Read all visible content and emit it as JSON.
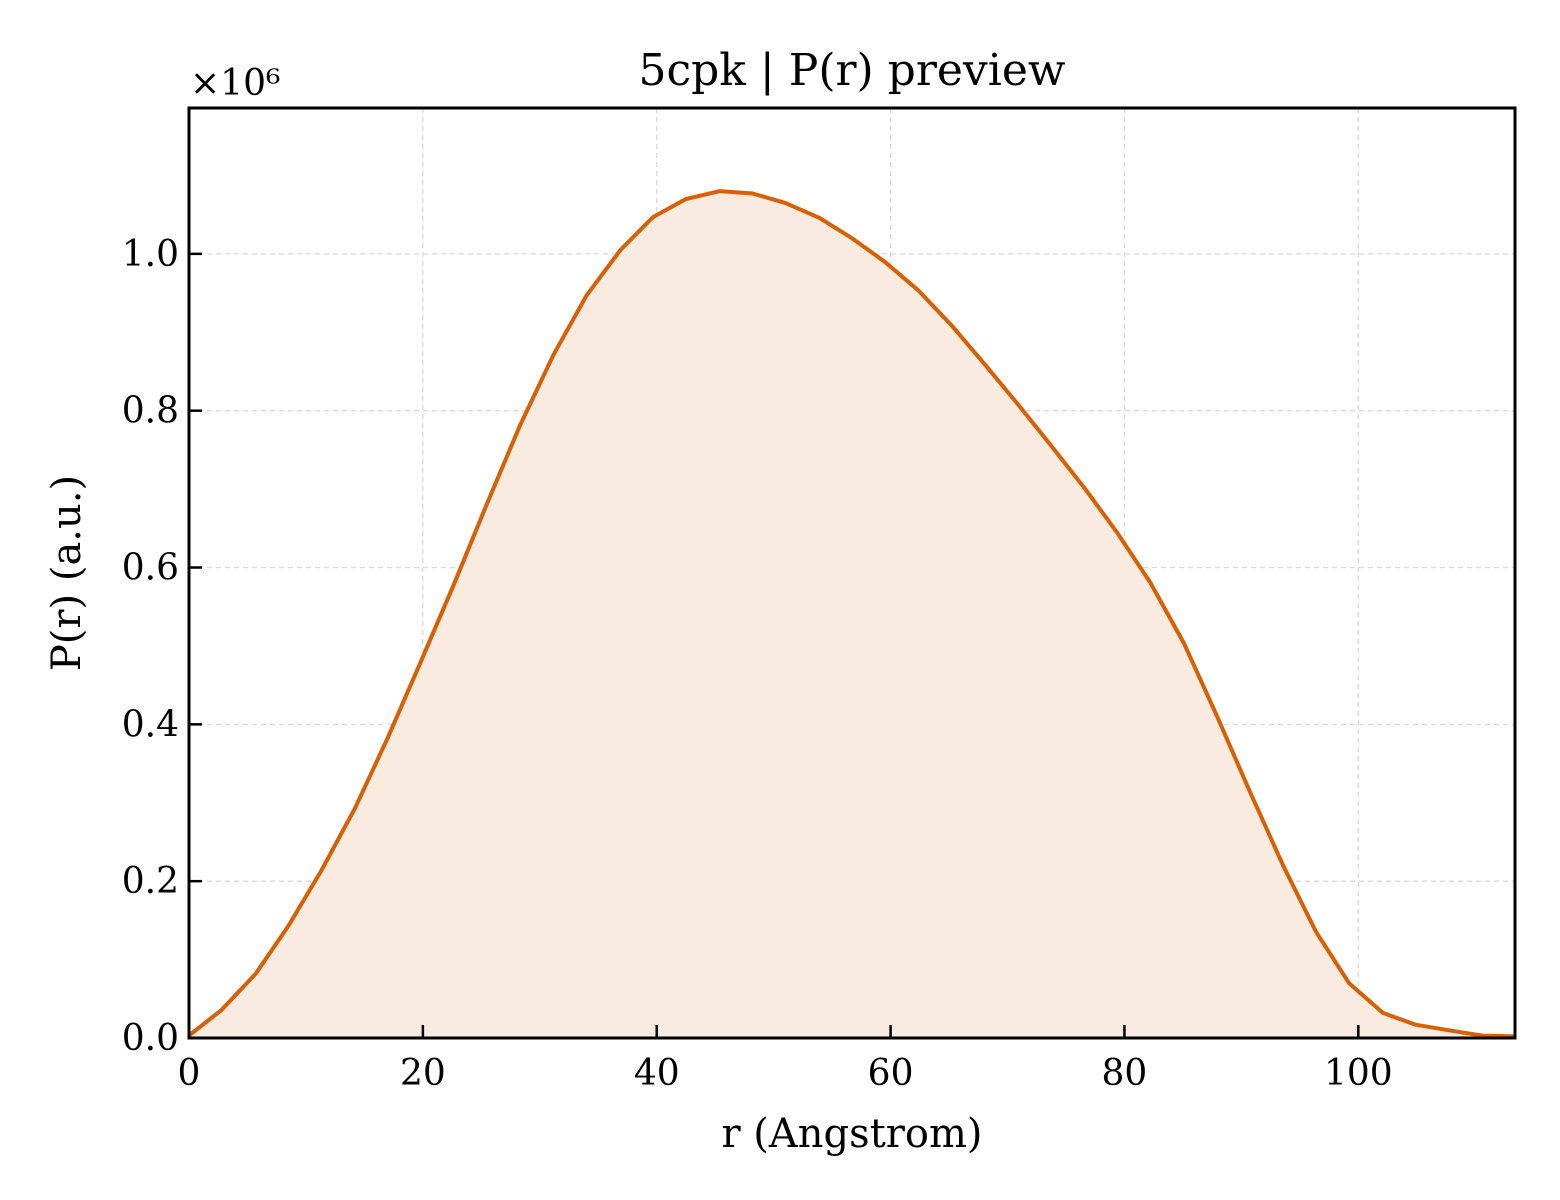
{
  "chart_data": {
    "type": "area",
    "title": "5cpk | P(r) preview",
    "xlabel": "r (Angstrom)",
    "ylabel": "P(r) (a.u.)",
    "y_offset_label": "×10⁶",
    "y_scale_factor": 1000000,
    "xlim": [
      0,
      113.4
    ],
    "ylim": [
      0,
      1.186
    ],
    "xticks": [
      0,
      20,
      40,
      60,
      80,
      100
    ],
    "xtick_labels": [
      "0",
      "20",
      "40",
      "60",
      "80",
      "100"
    ],
    "yticks": [
      0.0,
      0.2,
      0.4,
      0.6,
      0.8,
      1.0
    ],
    "ytick_labels": [
      "0.0",
      "0.2",
      "0.4",
      "0.6",
      "0.8",
      "1.0"
    ],
    "grid": true,
    "colors": {
      "line": "#d95f02",
      "fill": "#f9ebe0",
      "grid": "#d9d9d9"
    },
    "series": [
      {
        "x": [
          0,
          2.8,
          5.7,
          8.5,
          11.3,
          14.2,
          17.0,
          19.8,
          22.7,
          25.5,
          28.3,
          31.2,
          34.0,
          36.9,
          39.7,
          42.5,
          45.4,
          48.2,
          51.0,
          53.9,
          56.7,
          59.5,
          62.4,
          65.2,
          68.0,
          70.9,
          73.7,
          76.6,
          79.4,
          82.2,
          85.1,
          87.9,
          90.7,
          93.6,
          96.4,
          99.2,
          102.1,
          104.9,
          107.7,
          110.6,
          113.4
        ],
        "y": [
          0.003,
          0.036,
          0.082,
          0.143,
          0.213,
          0.293,
          0.383,
          0.479,
          0.58,
          0.682,
          0.781,
          0.872,
          0.947,
          1.005,
          1.047,
          1.07,
          1.08,
          1.077,
          1.065,
          1.046,
          1.02,
          0.99,
          0.953,
          0.909,
          0.86,
          0.808,
          0.756,
          0.701,
          0.644,
          0.581,
          0.503,
          0.411,
          0.315,
          0.219,
          0.135,
          0.07,
          0.032,
          0.017,
          0.01,
          0.003,
          0.002
        ]
      }
    ]
  }
}
